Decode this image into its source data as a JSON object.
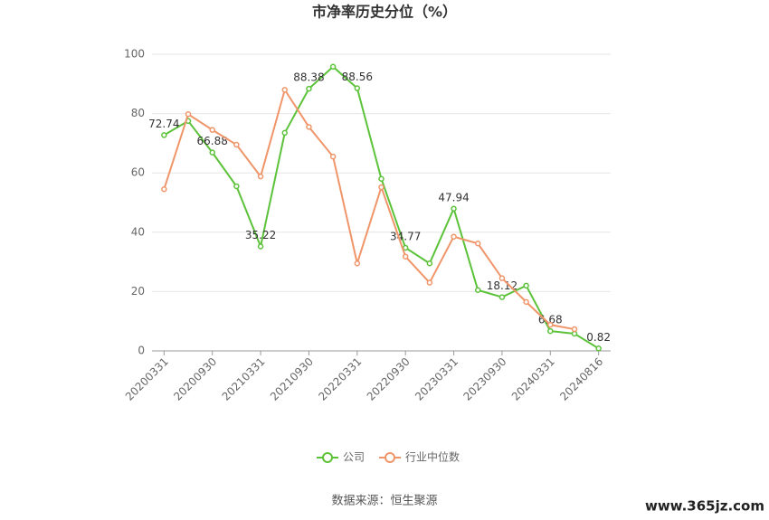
{
  "chart_data": {
    "type": "line",
    "title": "市净率历史分位（%）",
    "categories": [
      "20200331",
      null,
      "20200930",
      null,
      "20210331",
      null,
      "20210930",
      null,
      "20220331",
      null,
      "20220930",
      null,
      "20230331",
      null,
      "20230930",
      null,
      "20240331",
      null,
      "20240816"
    ],
    "series": [
      {
        "name": "公司",
        "color": "#5cc23a",
        "values": [
          72.74,
          77.5,
          66.88,
          55.5,
          35.22,
          73.5,
          88.38,
          95.8,
          88.56,
          58,
          34.77,
          29.5,
          47.94,
          20.5,
          18.12,
          22,
          6.68,
          5.8,
          0.82
        ],
        "value_labels": [
          "72.74",
          null,
          "66.88",
          null,
          "35.22",
          null,
          "88.38",
          null,
          "88.56",
          null,
          "34.77",
          null,
          "47.94",
          null,
          "18.12",
          null,
          "6.68",
          null,
          "0.82"
        ]
      },
      {
        "name": "行业中位数",
        "color": "#f0956a",
        "values": [
          54.5,
          79.8,
          74.5,
          69.5,
          58.8,
          88,
          75.5,
          65.5,
          29.5,
          55.2,
          31.8,
          23,
          38.5,
          36.2,
          24.5,
          16.5,
          8.8,
          7.3,
          null
        ]
      }
    ],
    "ylim": [
      0,
      100
    ],
    "yticks": [
      0,
      20,
      40,
      60,
      80,
      100
    ],
    "grid": true,
    "source": "数据来源：恒生聚源",
    "watermark": "www.365jz.com"
  }
}
